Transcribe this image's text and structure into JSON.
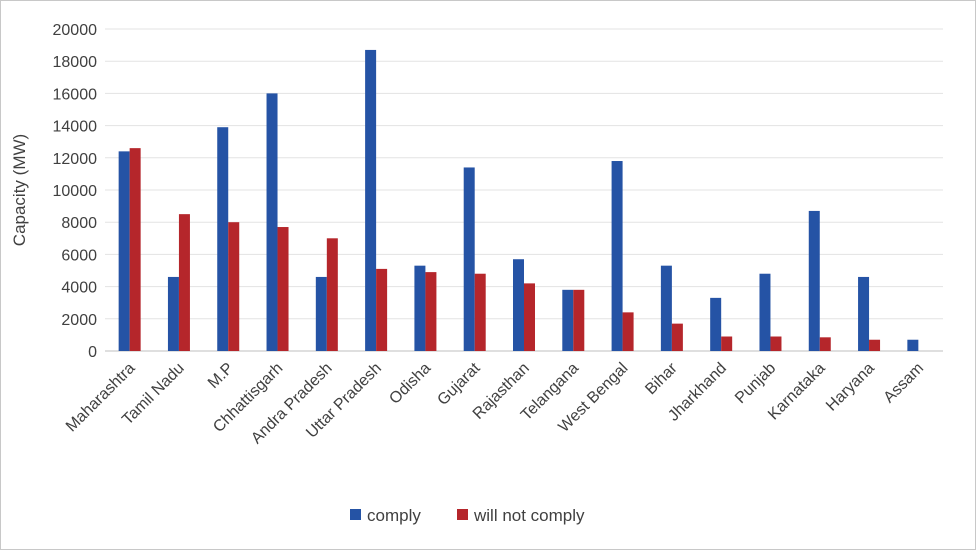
{
  "chart_data": {
    "type": "bar",
    "title": "",
    "xlabel": "",
    "ylabel": "Capacity (MW)",
    "ylim": [
      0,
      20000
    ],
    "yticks": [
      0,
      2000,
      4000,
      6000,
      8000,
      10000,
      12000,
      14000,
      16000,
      18000,
      20000
    ],
    "grid": true,
    "legend_position": "bottom",
    "categories": [
      "Maharashtra",
      "Tamil Nadu",
      "M.P",
      "Chhattisgarh",
      "Andra Pradesh",
      "Uttar Pradesh",
      "Odisha",
      "Gujarat",
      "Rajasthan",
      "Telangana",
      "West Bengal",
      "Bihar",
      "Jharkhand",
      "Punjab",
      "Karnataka",
      "Haryana",
      "Assam"
    ],
    "series": [
      {
        "name": "comply",
        "color": "#2553a5",
        "values": [
          12400,
          4600,
          13900,
          16000,
          4600,
          18700,
          5300,
          11400,
          5700,
          3800,
          11800,
          5300,
          3300,
          4800,
          8700,
          4600,
          700
        ]
      },
      {
        "name": "will not comply",
        "color": "#b5262b",
        "values": [
          12600,
          8500,
          8000,
          7700,
          7000,
          5100,
          4900,
          4800,
          4200,
          3800,
          2400,
          1700,
          900,
          900,
          850,
          700,
          0
        ]
      }
    ]
  }
}
